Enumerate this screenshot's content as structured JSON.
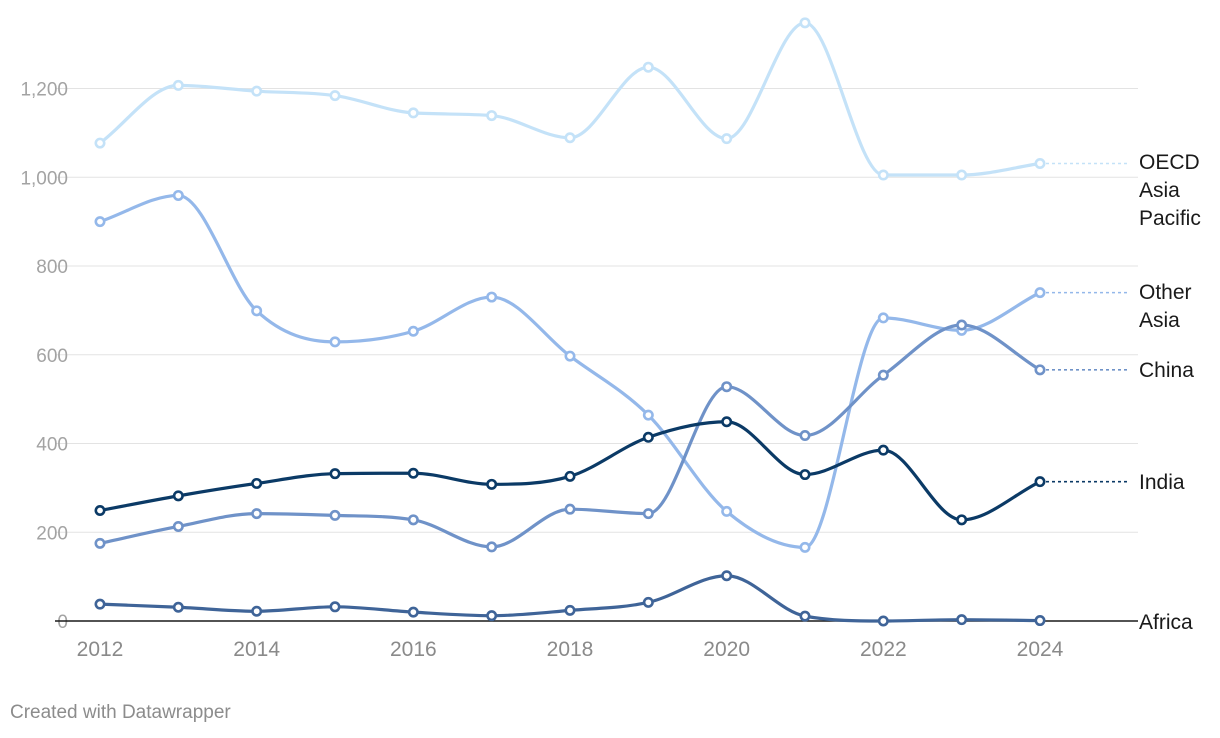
{
  "chart_data": {
    "type": "line",
    "x": [
      2012,
      2013,
      2014,
      2015,
      2016,
      2017,
      2018,
      2019,
      2020,
      2021,
      2022,
      2023,
      2024
    ],
    "series": [
      {
        "name": "OECD Asia Pacific",
        "label_lines": [
          "OECD",
          "Asia",
          "Pacific"
        ],
        "color": "#c4e2f8",
        "values": [
          1077,
          1207,
          1194,
          1184,
          1145,
          1139,
          1089,
          1248,
          1087,
          1348,
          1005,
          1005,
          1031
        ]
      },
      {
        "name": "Other Asia",
        "label_lines": [
          "Other",
          "Asia"
        ],
        "color": "#94b8ea",
        "values": [
          900,
          959,
          699,
          629,
          653,
          730,
          597,
          464,
          247,
          166,
          683,
          655,
          740
        ]
      },
      {
        "name": "China",
        "label_lines": [
          "China"
        ],
        "color": "#6f92c8",
        "values": [
          175,
          213,
          242,
          238,
          228,
          167,
          252,
          242,
          528,
          418,
          554,
          667,
          566
        ]
      },
      {
        "name": "India",
        "label_lines": [
          "India"
        ],
        "color": "#0b3a66",
        "values": [
          249,
          282,
          310,
          332,
          333,
          308,
          326,
          414,
          449,
          330,
          385,
          228,
          314
        ]
      },
      {
        "name": "Africa",
        "label_lines": [
          "Africa"
        ],
        "color": "#3f6498",
        "values": [
          38,
          31,
          22,
          32,
          20,
          12,
          24,
          42,
          102,
          11,
          0,
          3,
          1
        ]
      }
    ],
    "y_ticks": [
      0,
      200,
      400,
      600,
      800,
      1000,
      1200
    ],
    "y_tick_labels": [
      "0",
      "200",
      "400",
      "600",
      "800",
      "1,000",
      "1,200"
    ],
    "x_ticks": [
      2012,
      2014,
      2016,
      2018,
      2020,
      2022,
      2024
    ],
    "x_tick_labels": [
      "2012",
      "2014",
      "2016",
      "2018",
      "2020",
      "2022",
      "2024"
    ],
    "ylim": [
      0,
      1350
    ],
    "grid": true,
    "legend": "direct labels at line ends (right)"
  },
  "credit": "Created with Datawrapper"
}
